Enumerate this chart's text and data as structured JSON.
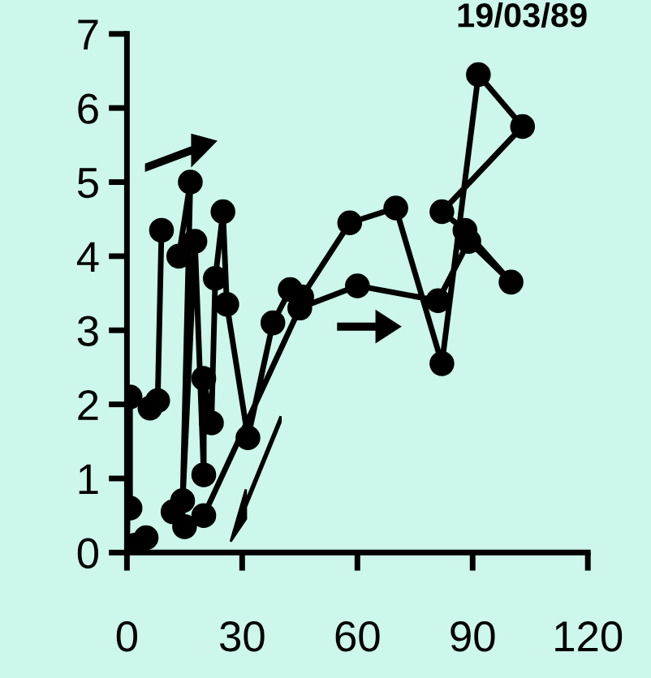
{
  "chart_data": {
    "type": "line",
    "title": "19/03/89",
    "marker": "circle",
    "line_style": "solid",
    "grid": false,
    "legend": false,
    "xlim": [
      0,
      120
    ],
    "ylim": [
      0,
      7
    ],
    "xticks": [
      0,
      30,
      60,
      90,
      120
    ],
    "yticks": [
      0,
      1,
      2,
      3,
      4,
      5,
      6,
      7
    ],
    "series": [
      {
        "color": "#000000",
        "x": [
          0,
          0.8,
          0.8,
          1,
          6,
          8,
          9,
          10,
          13.5,
          16.5,
          14.5,
          17.7,
          20,
          20,
          22,
          23,
          25,
          26,
          31.5,
          38,
          42.5,
          45.5,
          58,
          70,
          82,
          91.5,
          103,
          82,
          88,
          100,
          89,
          81,
          60,
          45,
          20,
          15,
          12,
          8,
          5,
          2
        ],
        "values": [
          0.05,
          2.1,
          0.6,
          null,
          1.95,
          2.05,
          4.35,
          null,
          4.0,
          5.0,
          0.7,
          4.2,
          1.05,
          2.35,
          1.75,
          3.7,
          4.6,
          3.35,
          1.55,
          3.1,
          3.55,
          3.45,
          4.45,
          4.65,
          2.55,
          6.45,
          5.75,
          4.6,
          4.35,
          3.65,
          4.2,
          3.4,
          3.6,
          3.3,
          0.5,
          0.35,
          0.55,
          null,
          0.2,
          0.1
        ]
      }
    ]
  }
}
